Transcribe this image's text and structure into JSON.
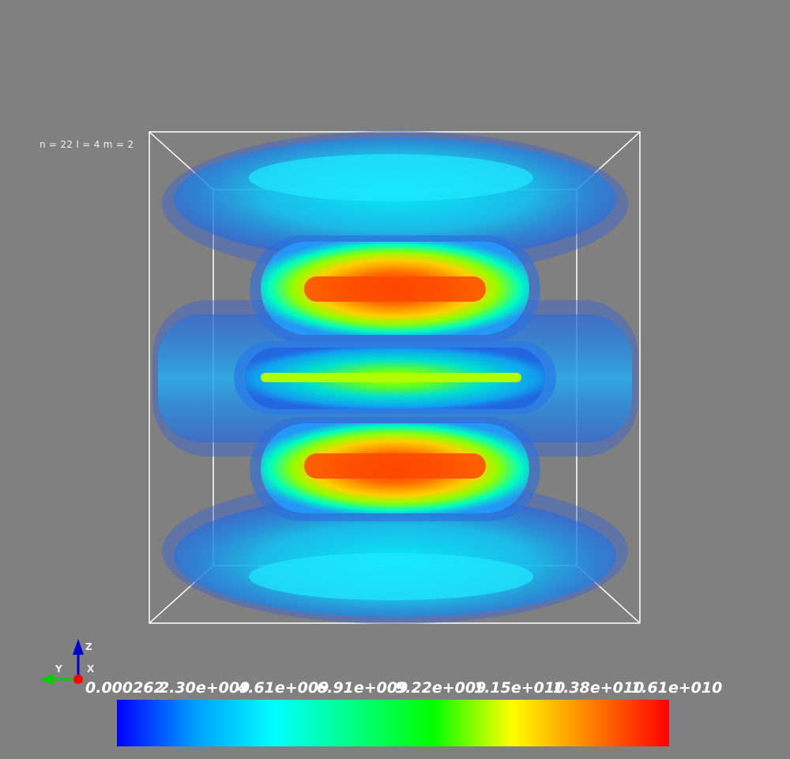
{
  "title": "n = 22 l = 4 m = 2",
  "colormap": {
    "tick_labels": [
      "0.000262",
      "2.30e+009",
      "4.61e+009",
      "6.91e+009",
      "9.22e+009",
      "1.15e+010",
      "1.38e+010",
      "1.61e+010"
    ],
    "gradient_colors": [
      "#0000ff",
      "#00a0ff",
      "#00ffff",
      "#00ff80",
      "#00ff00",
      "#ffff00",
      "#ff8000",
      "#ff0000"
    ]
  },
  "axes": {
    "x_label": "X",
    "y_label": "Y",
    "z_label": "Z",
    "x_color": "#ff0000",
    "y_color": "#00cc00",
    "z_color": "#0000cc"
  },
  "background_color": "#808080"
}
